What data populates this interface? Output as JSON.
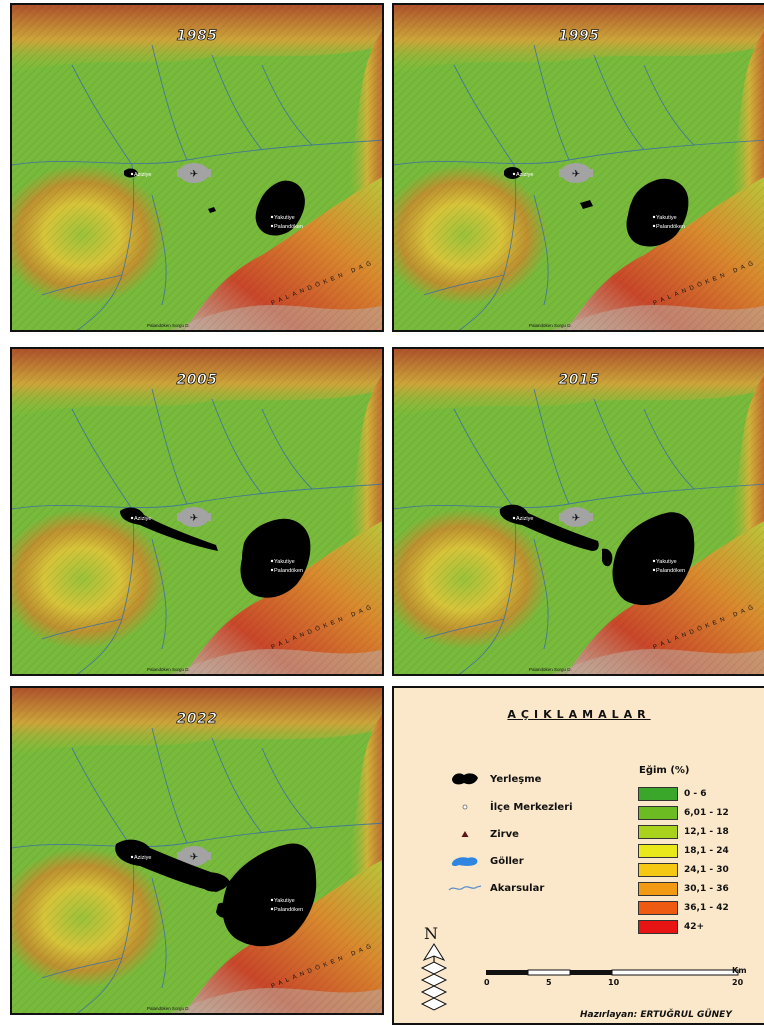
{
  "panels": [
    {
      "year": "1985",
      "stage": 0
    },
    {
      "year": "1995",
      "stage": 1
    },
    {
      "year": "2005",
      "stage": 2
    },
    {
      "year": "2015",
      "stage": 3
    },
    {
      "year": "2022",
      "stage": 4
    }
  ],
  "map_labels": {
    "aziziye": "Aziziye",
    "yakutiye": "Yakutiye",
    "palandoken": "Palandöken",
    "mountain": "PALANDÖKEN DAĞ",
    "summit": "Palandöken Sorgu D."
  },
  "legend": {
    "title": "AÇIKLAMALAR",
    "items": [
      {
        "label": "Yerleşme",
        "icon": "settlement-icon"
      },
      {
        "label": "İlçe Merkezleri",
        "icon": "district-center-icon"
      },
      {
        "label": "Zirve",
        "icon": "summit-icon"
      },
      {
        "label": "Göller",
        "icon": "lake-icon"
      },
      {
        "label": "Akarsular",
        "icon": "river-icon"
      }
    ],
    "slope_title": "Eğim (%)",
    "slope_classes": [
      {
        "label": "0 - 6",
        "color": "#3aa62a"
      },
      {
        "label": "6,01 - 12",
        "color": "#6dbb22"
      },
      {
        "label": "12,1 - 18",
        "color": "#a8d21c"
      },
      {
        "label": "18,1 - 24",
        "color": "#e8e81a"
      },
      {
        "label": "24,1 - 30",
        "color": "#f5c814"
      },
      {
        "label": "30,1 - 36",
        "color": "#f39a14"
      },
      {
        "label": "36,1 - 42",
        "color": "#ef5a12"
      },
      {
        "label": "42+",
        "color": "#e81414"
      }
    ],
    "north_label": "N",
    "scale": {
      "unit": "Km",
      "ticks": [
        "0",
        "5",
        "10",
        "20"
      ]
    },
    "credit": "Hazırlayan: ERTUĞRUL GÜNEY"
  }
}
